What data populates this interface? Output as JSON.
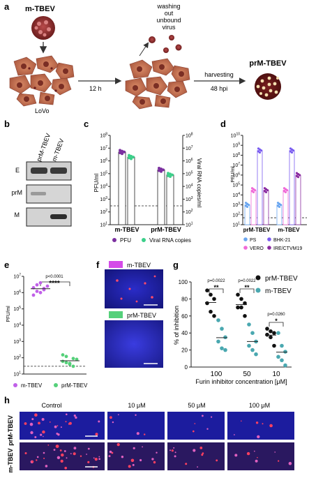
{
  "panel_labels": {
    "a": "a",
    "b": "b",
    "c": "c",
    "d": "d",
    "e": "e",
    "f": "f",
    "g": "g",
    "h": "h"
  },
  "panel_a": {
    "virus_label": "m-TBEV",
    "wash_lines": [
      "washing",
      "out",
      "unbound",
      "virus"
    ],
    "cells_label": "LoVo",
    "time_label": "12 h",
    "harvest_line1": "harvesting",
    "harvest_line2": "48 hpi",
    "product_label": "prM-TBEV"
  },
  "panel_b": {
    "columns": [
      "prM-TBEV",
      "m-TBEV"
    ],
    "rows": [
      "E",
      "prM",
      "M"
    ]
  },
  "colors": {
    "purple": "#7b2fa0",
    "green": "#3ccf8a",
    "teal": "#4aa8b0",
    "blue_ps": "#6aa6f0",
    "pink_vero": "#f06ad8",
    "bhk": "#7a5cf0",
    "ire": "#8a2aa0",
    "violet_e": "#c060e8",
    "green_e": "#55d07a"
  },
  "chart_data": [
    {
      "id": "c",
      "type": "bar",
      "categories": [
        "m-TBEV",
        "prM-TBEV"
      ],
      "series": [
        {
          "name": "PFU",
          "values": [
            5000000,
            200000
          ]
        },
        {
          "name": "Viral RNA copies",
          "values": [
            2000000,
            80000
          ]
        }
      ],
      "ylabel": "PFU/ml",
      "y2label": "Viral RNA copies/ml",
      "left_ticks": [
        "10^8",
        "10^7",
        "10^6",
        "10^5",
        "10^4",
        "10^3",
        "10^2",
        "10^1"
      ],
      "right_ticks": [
        "10^8",
        "10^7",
        "10^6",
        "10^5",
        "10^4",
        "10^3",
        "10^2",
        "10^1"
      ],
      "scale": "log"
    },
    {
      "id": "d",
      "type": "bar",
      "categories": [
        "prM-TBEV",
        "m-TBEV"
      ],
      "series": [
        {
          "name": "PS",
          "values": [
            1000,
            1000
          ]
        },
        {
          "name": "VERO",
          "values": [
            30000,
            30000
          ]
        },
        {
          "name": "BHK-21",
          "values": [
            300000000,
            300000000
          ]
        },
        {
          "name": "IRE/CTVM19",
          "values": [
            30000,
            1000000
          ]
        }
      ],
      "ylabel": "PFU/ml",
      "ticks": [
        "10^10",
        "10^9",
        "10^8",
        "10^7",
        "10^6",
        "10^5",
        "10^4",
        "10^3",
        "10^2",
        "10^1"
      ],
      "scale": "log"
    },
    {
      "id": "e",
      "type": "scatter",
      "categories": [
        "m-TBEV",
        "prM-TBEV"
      ],
      "series": [
        {
          "name": "m-TBEV",
          "values": [
            2000000,
            3000000,
            1000000,
            1500000,
            2500000,
            700000,
            1200000,
            4000000,
            1800000
          ]
        },
        {
          "name": "prM-TBEV",
          "values": [
            60,
            120,
            40,
            30,
            80,
            150,
            50,
            45,
            90
          ]
        }
      ],
      "ylabel": "PFU/ml",
      "ticks": [
        "10^7",
        "10^6",
        "10^5",
        "10^4",
        "10^3",
        "10^2",
        "10^1"
      ],
      "annotation_p": "p<0.0001",
      "annotation_stars": "****",
      "scale": "log"
    },
    {
      "id": "g",
      "type": "scatter",
      "categories": [
        "100",
        "50",
        "10"
      ],
      "series": [
        {
          "name": "prM-TBEV",
          "values": [
            [
              90,
              85,
              80,
              75,
              65,
              60
            ],
            [
              85,
              80,
              75,
              70,
              70,
              60
            ],
            [
              45,
              42,
              40,
              38,
              35,
              25
            ]
          ]
        },
        {
          "name": "m-TBEV",
          "values": [
            [
              55,
              45,
              35,
              30,
              22,
              20
            ],
            [
              50,
              40,
              30,
              25,
              20,
              15
            ],
            [
              40,
              25,
              18,
              12,
              8,
              2
            ]
          ]
        }
      ],
      "ylabel": "% of inhibition",
      "xlabel": "Furin inhibitor concentration [μM]",
      "ylim": [
        0,
        100
      ],
      "ticks": [
        "100",
        "80",
        "60",
        "40",
        "20",
        "0"
      ],
      "p_values": [
        "p=0.0022",
        "p=0.0022",
        "p=0.0260"
      ],
      "stars": [
        "**",
        "**",
        "*"
      ]
    }
  ],
  "panel_f": {
    "top_label": "m-TBEV",
    "bottom_label": "prM-TBEV"
  },
  "panel_h": {
    "columns": [
      "Control",
      "10 μM",
      "50 μM",
      "100 μM"
    ],
    "rows": [
      "prM-TBEV",
      "m-TBEV"
    ]
  }
}
